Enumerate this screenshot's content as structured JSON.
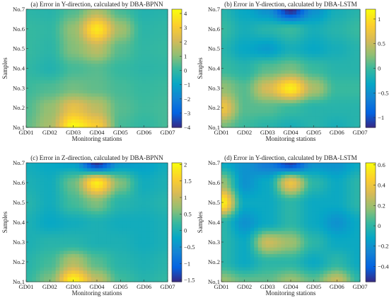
{
  "chart_data": [
    {
      "type": "heatmap",
      "title": "(a) Error in Y-direction, calculated by DBA-BPNN",
      "xlabel": "Monitoring stations",
      "ylabel": "Samples",
      "x_categories": [
        "GD01",
        "GD02",
        "GD03",
        "GD04",
        "GD05",
        "GD06",
        "GD07"
      ],
      "y_categories": [
        "No.1",
        "No.2",
        "No.3",
        "No.4",
        "No.5",
        "No.6",
        "No.7"
      ],
      "colorbar": {
        "range": [
          -4,
          4.3
        ],
        "ticks": [
          -4,
          -3,
          -2,
          -1,
          0,
          1,
          2,
          3,
          4
        ]
      },
      "values": [
        [
          0.6,
          1.5,
          4.3,
          3.2,
          0.3,
          0.0,
          0.3
        ],
        [
          0.4,
          1.2,
          2.6,
          1.8,
          0.5,
          0.2,
          0.3
        ],
        [
          0.2,
          0.4,
          0.8,
          0.6,
          0.3,
          0.1,
          0.2
        ],
        [
          0.0,
          -0.3,
          0.3,
          0.5,
          0.1,
          -0.1,
          0.0
        ],
        [
          0.1,
          -0.1,
          1.0,
          1.8,
          0.5,
          0.0,
          0.1
        ],
        [
          0.1,
          0.0,
          1.2,
          3.8,
          1.4,
          -0.1,
          0.0
        ],
        [
          -0.1,
          -0.2,
          0.4,
          1.5,
          0.3,
          -0.3,
          -0.2
        ]
      ]
    },
    {
      "type": "heatmap",
      "title": "(b) Error in Y-direction, calculated by DBA-LSTM",
      "xlabel": "Monitoring stations",
      "ylabel": "Samples",
      "x_categories": [
        "GD01",
        "GD02",
        "GD03",
        "GD04",
        "GD05",
        "GD06",
        "GD07"
      ],
      "y_categories": [
        "No.1",
        "No.2",
        "No.3",
        "No.4",
        "No.5",
        "No.6",
        "No.7"
      ],
      "colorbar": {
        "range": [
          -1.2,
          1.2
        ],
        "ticks": [
          -1,
          -0.5,
          0,
          0.5,
          1
        ]
      },
      "values": [
        [
          0.2,
          0.0,
          -0.1,
          -0.2,
          -0.1,
          -0.2,
          -0.1
        ],
        [
          0.8,
          0.1,
          0.1,
          0.0,
          -0.1,
          -0.1,
          -0.1
        ],
        [
          0.3,
          0.1,
          0.6,
          1.1,
          0.4,
          0.0,
          0.0
        ],
        [
          0.0,
          -0.1,
          0.1,
          0.2,
          0.0,
          -0.1,
          -0.1
        ],
        [
          -0.1,
          -0.3,
          -0.4,
          -0.2,
          -0.3,
          -0.2,
          -0.1
        ],
        [
          0.0,
          -0.2,
          -0.1,
          0.0,
          -0.2,
          -0.1,
          0.0
        ],
        [
          -0.1,
          -0.3,
          -0.5,
          -1.2,
          -0.5,
          -0.2,
          -0.1
        ]
      ]
    },
    {
      "type": "heatmap",
      "title": "(c) Error in Z-direction, calculated by DBA-BPNN",
      "xlabel": "Monitoring stations",
      "ylabel": "Samples",
      "x_categories": [
        "GD01",
        "GD02",
        "GD03",
        "GD04",
        "GD05",
        "GD06",
        "GD07"
      ],
      "y_categories": [
        "No.1",
        "No.2",
        "No.3",
        "No.4",
        "No.5",
        "No.6",
        "No.7"
      ],
      "colorbar": {
        "range": [
          -1.55,
          2.05
        ],
        "ticks": [
          -1.5,
          -1,
          -0.5,
          0,
          0.5,
          1,
          1.5,
          2
        ]
      },
      "values": [
        [
          0.2,
          0.6,
          2.0,
          1.0,
          0.3,
          0.1,
          0.2
        ],
        [
          0.1,
          0.3,
          0.9,
          0.4,
          0.1,
          0.0,
          0.1
        ],
        [
          0.0,
          0.1,
          0.1,
          0.0,
          0.0,
          -0.1,
          0.0
        ],
        [
          0.0,
          -0.2,
          -0.1,
          0.0,
          -0.1,
          -0.1,
          0.0
        ],
        [
          0.1,
          -0.1,
          0.3,
          0.6,
          0.1,
          0.0,
          0.1
        ],
        [
          0.0,
          -0.1,
          0.5,
          1.9,
          0.6,
          -0.1,
          0.0
        ],
        [
          -0.1,
          -0.2,
          -0.3,
          -1.5,
          -0.4,
          -0.3,
          -0.1
        ]
      ]
    },
    {
      "type": "heatmap",
      "title": "(d) Error in Y-direction, calculated by DBA-LSTM",
      "xlabel": "Monitoring stations",
      "ylabel": "Samples",
      "x_categories": [
        "GD01",
        "GD02",
        "GD03",
        "GD04",
        "GD05",
        "GD06",
        "GD07"
      ],
      "y_categories": [
        "No.1",
        "No.2",
        "No.3",
        "No.4",
        "No.5",
        "No.6",
        "No.7"
      ],
      "colorbar": {
        "range": [
          -0.55,
          0.62
        ],
        "ticks": [
          -0.4,
          -0.2,
          0,
          0.2,
          0.4,
          0.6
        ]
      },
      "values": [
        [
          0.2,
          0.1,
          0.1,
          0.2,
          0.1,
          0.3,
          0.0
        ],
        [
          0.0,
          -0.1,
          0.0,
          0.0,
          -0.1,
          0.0,
          -0.1
        ],
        [
          0.0,
          -0.1,
          0.3,
          0.2,
          0.0,
          -0.1,
          -0.1
        ],
        [
          0.0,
          -0.2,
          -0.1,
          0.0,
          -0.1,
          -0.2,
          -0.1
        ],
        [
          0.6,
          -0.1,
          -0.1,
          0.0,
          -0.1,
          -0.1,
          0.0
        ],
        [
          0.2,
          -0.2,
          -0.1,
          0.4,
          0.0,
          -0.1,
          0.0
        ],
        [
          -0.1,
          -0.2,
          -0.3,
          -0.5,
          -0.2,
          -0.2,
          -0.1
        ]
      ]
    }
  ]
}
